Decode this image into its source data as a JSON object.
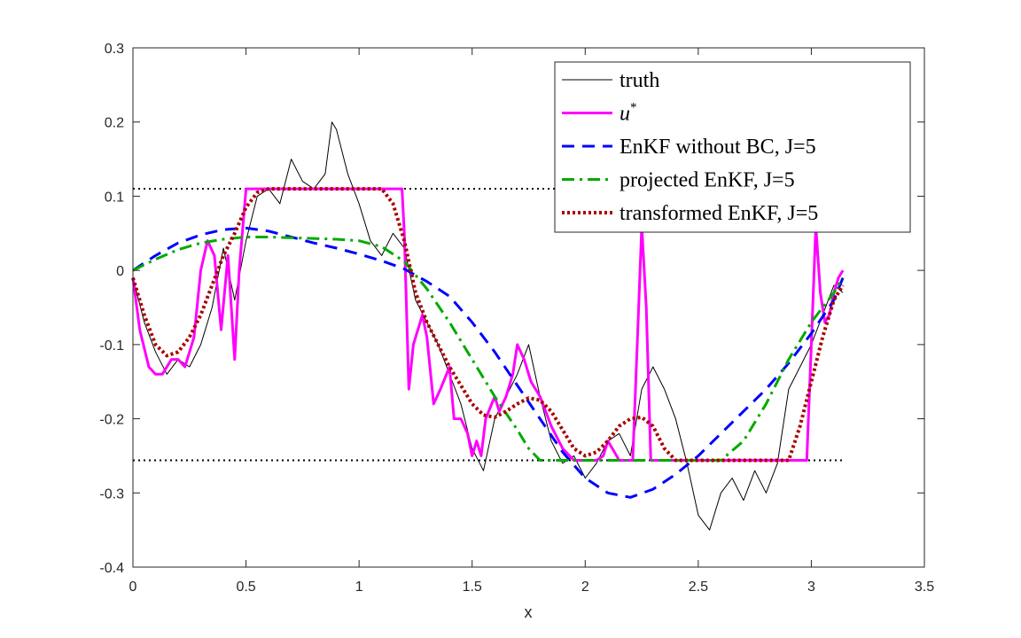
{
  "chart_data": {
    "type": "line",
    "xlabel": "x",
    "ylabel": "",
    "xlim": [
      0,
      3.5
    ],
    "ylim": [
      -0.4,
      0.3
    ],
    "xticks": [
      0,
      0.5,
      1,
      1.5,
      2,
      2.5,
      3,
      3.5
    ],
    "xtick_labels": [
      "0",
      "0.5",
      "1",
      "1.5",
      "2",
      "2.5",
      "3",
      "3.5"
    ],
    "yticks": [
      -0.4,
      -0.3,
      -0.2,
      -0.1,
      0,
      0.1,
      0.2,
      0.3
    ],
    "ytick_labels": [
      "-0.4",
      "-0.3",
      "-0.2",
      "-0.1",
      "0",
      "0.1",
      "0.2",
      "0.3"
    ],
    "grid": false,
    "legend_position": "top-right",
    "bounds": {
      "upper": 0.11,
      "lower": -0.256,
      "x_range": [
        0,
        3.1416
      ],
      "color": "#000000",
      "style": "dotted"
    },
    "series": [
      {
        "name": "truth",
        "legend_label": "truth",
        "color": "#000000",
        "style": "solid",
        "x": [
          0,
          0.05,
          0.1,
          0.15,
          0.2,
          0.25,
          0.3,
          0.35,
          0.4,
          0.45,
          0.5,
          0.55,
          0.6,
          0.65,
          0.7,
          0.75,
          0.8,
          0.85,
          0.88,
          0.9,
          0.95,
          1.0,
          1.05,
          1.1,
          1.15,
          1.2,
          1.25,
          1.3,
          1.35,
          1.4,
          1.45,
          1.5,
          1.55,
          1.6,
          1.65,
          1.7,
          1.75,
          1.8,
          1.85,
          1.9,
          1.95,
          2.0,
          2.05,
          2.1,
          2.15,
          2.2,
          2.25,
          2.3,
          2.35,
          2.4,
          2.45,
          2.5,
          2.55,
          2.6,
          2.65,
          2.7,
          2.75,
          2.8,
          2.85,
          2.9,
          2.95,
          3.0,
          3.05,
          3.1,
          3.14
        ],
        "y": [
          -0.01,
          -0.07,
          -0.11,
          -0.14,
          -0.12,
          -0.13,
          -0.1,
          -0.05,
          0.03,
          -0.04,
          0.04,
          0.1,
          0.11,
          0.09,
          0.15,
          0.12,
          0.11,
          0.13,
          0.2,
          0.19,
          0.13,
          0.09,
          0.04,
          0.02,
          0.05,
          0.03,
          -0.04,
          -0.07,
          -0.1,
          -0.14,
          -0.18,
          -0.24,
          -0.27,
          -0.2,
          -0.17,
          -0.14,
          -0.1,
          -0.17,
          -0.23,
          -0.26,
          -0.25,
          -0.28,
          -0.26,
          -0.23,
          -0.22,
          -0.25,
          -0.16,
          -0.13,
          -0.16,
          -0.2,
          -0.26,
          -0.33,
          -0.35,
          -0.3,
          -0.28,
          -0.31,
          -0.27,
          -0.3,
          -0.26,
          -0.16,
          -0.13,
          -0.1,
          -0.06,
          -0.02,
          -0.03
        ]
      },
      {
        "name": "u*",
        "legend_label": "u",
        "legend_superscript": "*",
        "color": "#ff00ff",
        "style": "solid",
        "x": [
          0,
          0.03,
          0.07,
          0.1,
          0.13,
          0.17,
          0.2,
          0.23,
          0.27,
          0.3,
          0.33,
          0.36,
          0.39,
          0.42,
          0.45,
          0.47,
          0.5,
          0.55,
          0.6,
          0.7,
          0.8,
          0.9,
          1.0,
          1.1,
          1.19,
          1.2,
          1.22,
          1.24,
          1.28,
          1.3,
          1.33,
          1.36,
          1.4,
          1.42,
          1.45,
          1.48,
          1.5,
          1.52,
          1.54,
          1.56,
          1.6,
          1.62,
          1.65,
          1.68,
          1.7,
          1.73,
          1.76,
          1.8,
          1.85,
          1.9,
          1.95,
          2.0,
          2.05,
          2.08,
          2.1,
          2.12,
          2.15,
          2.18,
          2.21,
          2.23,
          2.25,
          2.27,
          2.29,
          2.3,
          2.35,
          2.5,
          2.7,
          2.9,
          2.98,
          3.0,
          3.02,
          3.04,
          3.06,
          3.08,
          3.1,
          3.12,
          3.14
        ],
        "y": [
          -0.01,
          -0.08,
          -0.13,
          -0.14,
          -0.14,
          -0.12,
          -0.12,
          -0.13,
          -0.09,
          0.0,
          0.04,
          0.02,
          -0.08,
          0.02,
          -0.12,
          0.0,
          0.11,
          0.11,
          0.11,
          0.11,
          0.11,
          0.11,
          0.11,
          0.11,
          0.11,
          0.05,
          -0.16,
          -0.1,
          -0.06,
          -0.09,
          -0.18,
          -0.16,
          -0.13,
          -0.2,
          -0.2,
          -0.22,
          -0.25,
          -0.23,
          -0.25,
          -0.2,
          -0.17,
          -0.19,
          -0.17,
          -0.14,
          -0.1,
          -0.12,
          -0.15,
          -0.17,
          -0.21,
          -0.24,
          -0.256,
          -0.256,
          -0.256,
          -0.25,
          -0.23,
          -0.24,
          -0.256,
          -0.256,
          -0.256,
          -0.1,
          0.06,
          -0.05,
          -0.256,
          -0.256,
          -0.256,
          -0.256,
          -0.256,
          -0.256,
          -0.256,
          -0.1,
          0.06,
          -0.03,
          -0.07,
          -0.06,
          -0.03,
          -0.01,
          0.0
        ]
      },
      {
        "name": "EnKF without BC, J=5",
        "legend_label": "EnKF without BC, J=5",
        "color": "#0000ff",
        "style": "dashed",
        "x": [
          0,
          0.1,
          0.2,
          0.3,
          0.4,
          0.5,
          0.6,
          0.7,
          0.8,
          0.9,
          1.0,
          1.1,
          1.2,
          1.3,
          1.4,
          1.5,
          1.6,
          1.7,
          1.8,
          1.9,
          2.0,
          2.1,
          2.2,
          2.3,
          2.4,
          2.5,
          2.6,
          2.7,
          2.8,
          2.9,
          3.0,
          3.1,
          3.14
        ],
        "y": [
          0.0,
          0.02,
          0.037,
          0.048,
          0.055,
          0.057,
          0.053,
          0.045,
          0.037,
          0.03,
          0.022,
          0.013,
          0.002,
          -0.015,
          -0.035,
          -0.07,
          -0.11,
          -0.155,
          -0.2,
          -0.245,
          -0.28,
          -0.3,
          -0.306,
          -0.295,
          -0.275,
          -0.25,
          -0.22,
          -0.19,
          -0.16,
          -0.125,
          -0.085,
          -0.04,
          -0.01
        ]
      },
      {
        "name": "projected EnKF, J=5",
        "legend_label": "projected EnKF, J=5",
        "color": "#00aa00",
        "style": "dashdot",
        "x": [
          0,
          0.1,
          0.2,
          0.3,
          0.4,
          0.5,
          0.6,
          0.7,
          0.8,
          0.9,
          1.0,
          1.1,
          1.2,
          1.3,
          1.4,
          1.5,
          1.6,
          1.7,
          1.75,
          1.8,
          2.0,
          2.2,
          2.4,
          2.6,
          2.7,
          2.8,
          2.9,
          3.0,
          3.1,
          3.14
        ],
        "y": [
          0.0,
          0.015,
          0.028,
          0.037,
          0.042,
          0.045,
          0.045,
          0.044,
          0.043,
          0.042,
          0.04,
          0.032,
          0.012,
          -0.025,
          -0.07,
          -0.12,
          -0.17,
          -0.215,
          -0.24,
          -0.256,
          -0.256,
          -0.256,
          -0.256,
          -0.256,
          -0.23,
          -0.18,
          -0.12,
          -0.07,
          -0.03,
          -0.01
        ]
      },
      {
        "name": "transformed EnKF, J=5",
        "legend_label": "transformed EnKF, J=5",
        "color": "#aa0000",
        "style": "dotted",
        "x": [
          0,
          0.05,
          0.1,
          0.15,
          0.2,
          0.25,
          0.3,
          0.35,
          0.4,
          0.45,
          0.5,
          0.55,
          0.6,
          0.7,
          0.8,
          0.9,
          1.0,
          1.1,
          1.15,
          1.2,
          1.25,
          1.3,
          1.35,
          1.4,
          1.45,
          1.5,
          1.55,
          1.6,
          1.65,
          1.7,
          1.75,
          1.8,
          1.85,
          1.9,
          1.95,
          2.0,
          2.05,
          2.1,
          2.15,
          2.2,
          2.25,
          2.3,
          2.35,
          2.4,
          2.45,
          2.5,
          2.6,
          2.7,
          2.8,
          2.9,
          2.95,
          3.0,
          3.05,
          3.1,
          3.14
        ],
        "y": [
          -0.01,
          -0.06,
          -0.1,
          -0.115,
          -0.11,
          -0.09,
          -0.06,
          -0.02,
          0.02,
          0.05,
          0.085,
          0.105,
          0.11,
          0.11,
          0.11,
          0.11,
          0.11,
          0.11,
          0.09,
          0.04,
          -0.03,
          -0.07,
          -0.1,
          -0.13,
          -0.155,
          -0.18,
          -0.195,
          -0.198,
          -0.19,
          -0.18,
          -0.172,
          -0.175,
          -0.19,
          -0.215,
          -0.24,
          -0.25,
          -0.245,
          -0.23,
          -0.21,
          -0.2,
          -0.198,
          -0.21,
          -0.24,
          -0.256,
          -0.256,
          -0.256,
          -0.256,
          -0.256,
          -0.256,
          -0.256,
          -0.21,
          -0.15,
          -0.09,
          -0.04,
          -0.02
        ]
      }
    ]
  }
}
